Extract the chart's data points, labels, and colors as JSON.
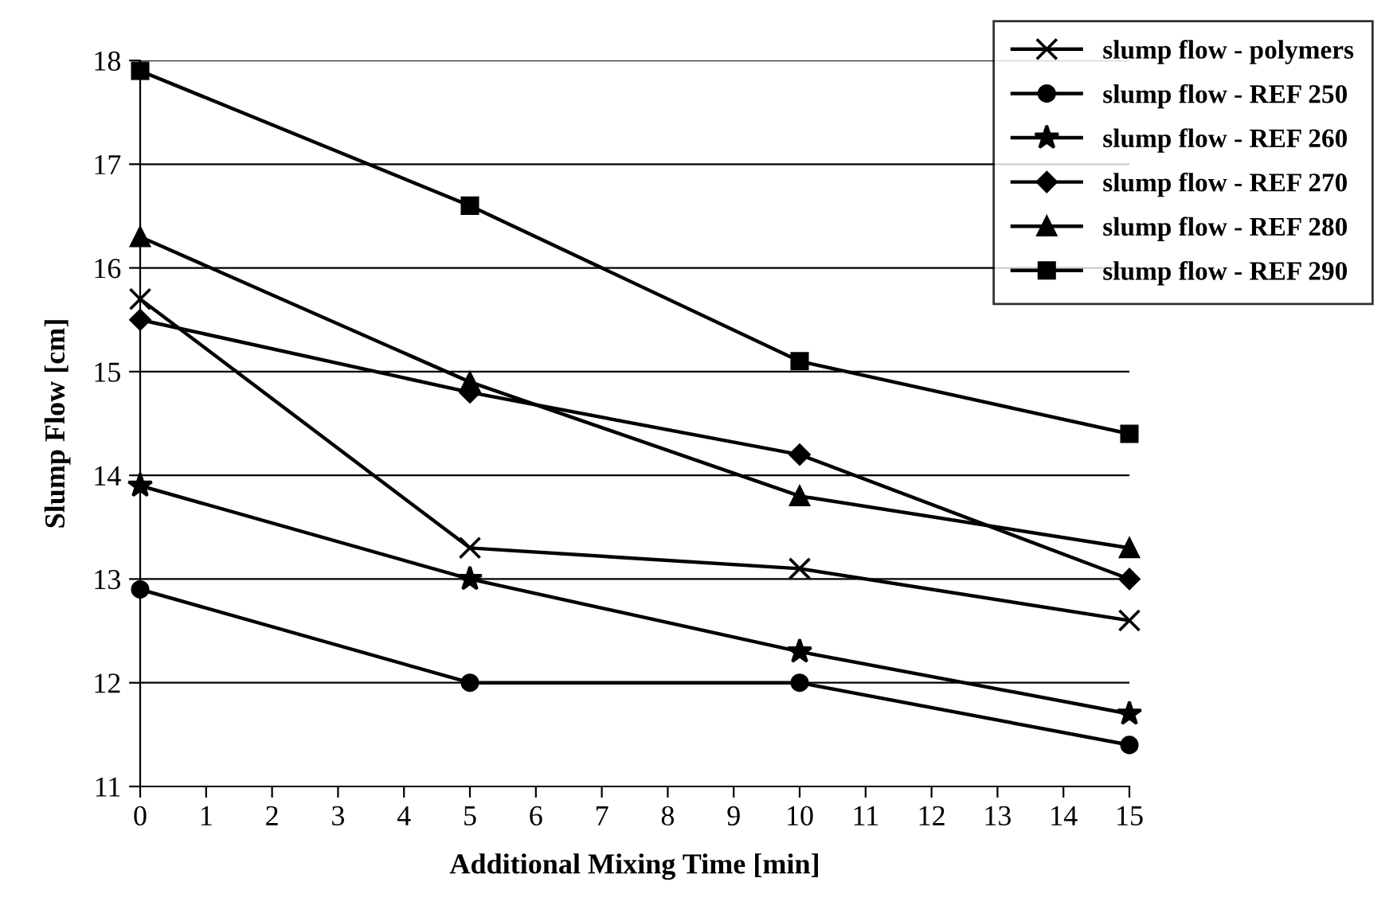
{
  "chart_data": {
    "type": "line",
    "xlabel": "Additional Mixing Time [min]",
    "ylabel": "Slump Flow [cm]",
    "x": [
      0,
      5,
      10,
      15
    ],
    "series": [
      {
        "name": "slump flow - polymers",
        "color": "#000000",
        "marker": "cross",
        "values": [
          15.7,
          13.3,
          13.1,
          12.6
        ]
      },
      {
        "name": "slump flow - REF 250",
        "color": "#000000",
        "marker": "circle",
        "values": [
          12.9,
          12.0,
          12.0,
          11.4
        ]
      },
      {
        "name": "slump flow - REF 260",
        "color": "#000000",
        "marker": "star",
        "values": [
          13.9,
          13.0,
          12.3,
          11.7
        ]
      },
      {
        "name": "slump flow - REF 270",
        "color": "#000000",
        "marker": "diamond",
        "values": [
          15.5,
          14.8,
          14.2,
          13.0
        ]
      },
      {
        "name": "slump flow - REF 280",
        "color": "#000000",
        "marker": "triangle",
        "values": [
          16.3,
          14.9,
          13.8,
          13.3
        ]
      },
      {
        "name": "slump flow - REF 290",
        "color": "#000000",
        "marker": "square",
        "values": [
          17.9,
          16.6,
          15.1,
          14.4
        ]
      }
    ],
    "xlim": [
      0,
      15
    ],
    "xticks": [
      0,
      1,
      2,
      3,
      4,
      5,
      6,
      7,
      8,
      9,
      10,
      11,
      12,
      13,
      14,
      15
    ],
    "ylim": [
      11,
      18
    ],
    "yticks": [
      11,
      12,
      13,
      14,
      15,
      16,
      17,
      18
    ],
    "grid": "y",
    "legend": "top right"
  }
}
